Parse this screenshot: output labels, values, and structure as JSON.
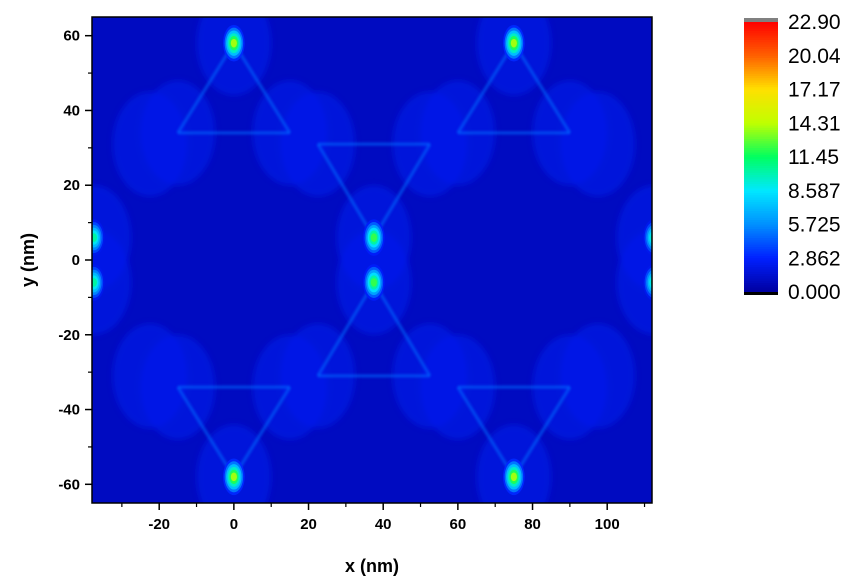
{
  "chart_data": {
    "type": "heatmap",
    "title": "",
    "xlabel": "x (nm)",
    "ylabel": "y (nm)",
    "xlim": [
      -38,
      112
    ],
    "ylim": [
      -65,
      65
    ],
    "x_ticks": [
      -20,
      0,
      20,
      40,
      60,
      80,
      100
    ],
    "y_ticks": [
      -60,
      -40,
      -20,
      0,
      20,
      40,
      60
    ],
    "grid": false,
    "colorbar": {
      "min": 0.0,
      "max": 22.9,
      "labels": [
        "22.90",
        "20.04",
        "17.17",
        "14.31",
        "11.45",
        "8.587",
        "5.725",
        "2.862",
        "0.000"
      ],
      "colors": [
        "#0000a0",
        "#0020ff",
        "#0090ff",
        "#00e8ff",
        "#00ff60",
        "#c0ff00",
        "#ffe000",
        "#ff6000",
        "#ff0000"
      ]
    },
    "background_value": 1.0,
    "field_description": "hexagonal lattice of triangular nanoprism gaps",
    "hotspots": [
      {
        "x": 0,
        "y": 58,
        "value": 15.5
      },
      {
        "x": 0,
        "y": -58,
        "value": 15.5
      },
      {
        "x": 75,
        "y": 58,
        "value": 15.5
      },
      {
        "x": 75,
        "y": -58,
        "value": 15.5
      },
      {
        "x": 37.5,
        "y": 6,
        "value": 13.5
      },
      {
        "x": 37.5,
        "y": -6,
        "value": 13.5
      },
      {
        "x": -37.5,
        "y": 6,
        "value": 11.5
      },
      {
        "x": -37.5,
        "y": -6,
        "value": 11.5
      },
      {
        "x": 112.5,
        "y": 6,
        "value": 11.5
      },
      {
        "x": 112.5,
        "y": -6,
        "value": 11.5
      }
    ],
    "prism_tips": [
      {
        "x": 0,
        "y": 58
      },
      {
        "x": -15,
        "y": 34
      },
      {
        "x": 15,
        "y": 34
      },
      {
        "x": 75,
        "y": 58
      },
      {
        "x": 60,
        "y": 34
      },
      {
        "x": 90,
        "y": 34
      },
      {
        "x": 0,
        "y": -58
      },
      {
        "x": -15,
        "y": -34
      },
      {
        "x": 15,
        "y": -34
      },
      {
        "x": 75,
        "y": -58
      },
      {
        "x": 60,
        "y": -34
      },
      {
        "x": 90,
        "y": -34
      },
      {
        "x": 37.5,
        "y": 6
      },
      {
        "x": 22.5,
        "y": 31
      },
      {
        "x": 52.5,
        "y": 31
      },
      {
        "x": 37.5,
        "y": -6
      },
      {
        "x": 22.5,
        "y": -31
      },
      {
        "x": 52.5,
        "y": -31
      },
      {
        "x": -37.5,
        "y": 6
      },
      {
        "x": -22.5,
        "y": 31
      },
      {
        "x": -22.5,
        "y": -31
      },
      {
        "x": 112.5,
        "y": 6
      },
      {
        "x": 97.5,
        "y": 31
      },
      {
        "x": 97.5,
        "y": -31
      },
      {
        "x": -37.5,
        "y": -6
      },
      {
        "x": 112.5,
        "y": -6
      }
    ]
  }
}
